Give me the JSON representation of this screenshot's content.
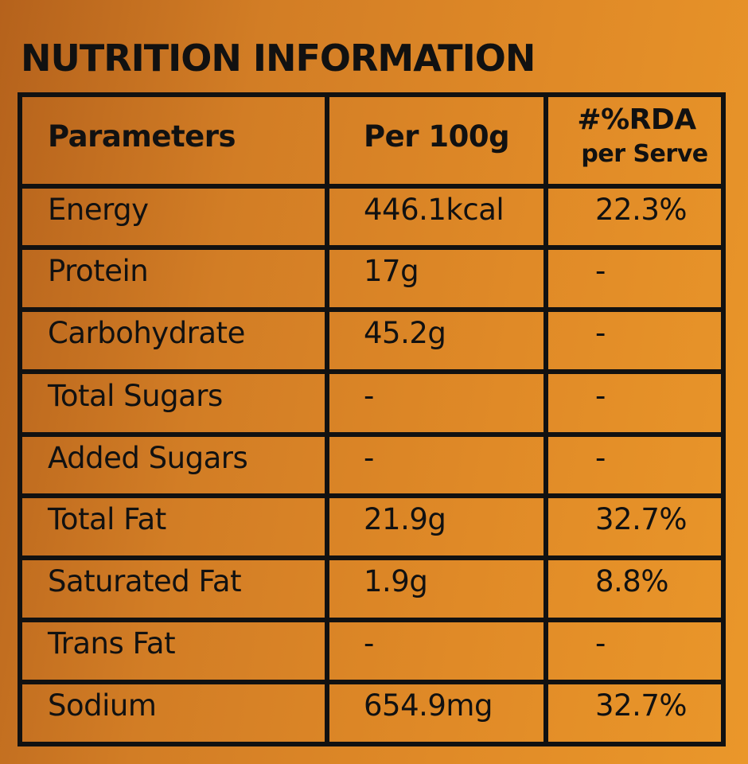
{
  "title": "NUTRITION INFORMATION",
  "table": {
    "header": [
      "Parameters",
      "Per 100g",
      [
        "#%RDA",
        "per Serve"
      ]
    ],
    "rows": [
      [
        "Energy",
        "446.1kcal",
        "22.3%"
      ],
      [
        "Protein",
        "17g",
        "-"
      ],
      [
        "Carbohydrate",
        "45.2g",
        "-"
      ],
      [
        "Total Sugars",
        "-",
        "-"
      ],
      [
        "Added Sugars",
        "-",
        "-"
      ],
      [
        "Total Fat",
        "21.9g",
        "32.7%"
      ],
      [
        "Saturated Fat",
        "1.9g",
        "8.8%"
      ],
      [
        "Trans Fat",
        "-",
        "-"
      ],
      [
        "Sodium",
        "654.9mg",
        "32.7%"
      ]
    ]
  }
}
